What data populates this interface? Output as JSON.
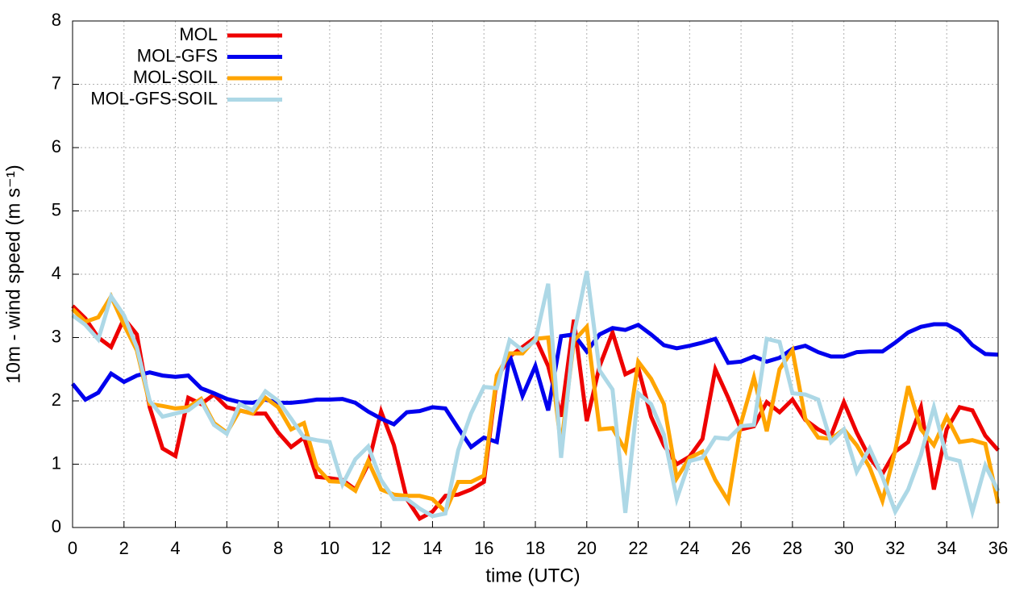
{
  "chart_data": {
    "type": "line",
    "x_label": "time (UTC)",
    "y_label": "10m - wind speed  (m s⁻¹)",
    "x": [
      0,
      0.5,
      1,
      1.5,
      2,
      2.5,
      3,
      3.5,
      4,
      4.5,
      5,
      5.5,
      6,
      6.5,
      7,
      7.5,
      8,
      8.5,
      9,
      9.5,
      10,
      10.5,
      11,
      11.5,
      12,
      12.5,
      13,
      13.5,
      14,
      14.5,
      15,
      15.5,
      16,
      16.5,
      17,
      17.5,
      18,
      18.5,
      19,
      19.5,
      20,
      20.5,
      21,
      21.5,
      22,
      22.5,
      23,
      23.5,
      24,
      24.5,
      25,
      25.5,
      26,
      26.5,
      27,
      27.5,
      28,
      28.5,
      29,
      29.5,
      30,
      30.5,
      31,
      31.5,
      32,
      32.5,
      33,
      33.5,
      34,
      34.5,
      35,
      35.5,
      36
    ],
    "series": [
      {
        "name": "MOL",
        "color": "#ee0000",
        "values": [
          3.5,
          3.3,
          3.0,
          2.85,
          3.3,
          3.05,
          1.9,
          1.25,
          1.13,
          2.05,
          1.95,
          2.1,
          1.9,
          1.85,
          1.8,
          1.8,
          1.5,
          1.27,
          1.42,
          0.8,
          0.78,
          0.75,
          0.6,
          1.0,
          1.83,
          1.3,
          0.45,
          0.14,
          0.25,
          0.5,
          0.52,
          0.6,
          0.72,
          2.35,
          2.7,
          2.85,
          3.0,
          2.55,
          1.75,
          3.28,
          1.68,
          2.55,
          3.08,
          2.42,
          2.52,
          1.75,
          1.3,
          1.0,
          1.12,
          1.4,
          2.5,
          2.05,
          1.55,
          1.6,
          1.98,
          1.82,
          2.02,
          1.7,
          1.55,
          1.45,
          1.98,
          1.5,
          1.1,
          0.85,
          1.2,
          1.35,
          1.9,
          0.6,
          1.55,
          1.9,
          1.85,
          1.45,
          1.22
        ]
      },
      {
        "name": "MOL-GFS",
        "color": "#0000ee",
        "values": [
          2.27,
          2.02,
          2.13,
          2.43,
          2.3,
          2.4,
          2.45,
          2.4,
          2.38,
          2.4,
          2.2,
          2.12,
          2.03,
          1.98,
          1.97,
          2.02,
          1.97,
          1.97,
          1.99,
          2.02,
          2.02,
          2.03,
          1.97,
          1.83,
          1.72,
          1.63,
          1.82,
          1.84,
          1.9,
          1.88,
          1.57,
          1.27,
          1.42,
          1.35,
          2.72,
          2.08,
          2.55,
          1.85,
          3.02,
          3.05,
          2.78,
          3.05,
          3.15,
          3.12,
          3.2,
          3.05,
          2.88,
          2.83,
          2.87,
          2.92,
          2.98,
          2.6,
          2.62,
          2.7,
          2.62,
          2.68,
          2.82,
          2.87,
          2.77,
          2.7,
          2.7,
          2.77,
          2.78,
          2.78,
          2.92,
          3.08,
          3.17,
          3.21,
          3.21,
          3.1,
          2.88,
          2.74,
          2.73
        ]
      },
      {
        "name": "MOL-SOIL",
        "color": "#ffa500",
        "values": [
          3.45,
          3.25,
          3.32,
          3.65,
          3.2,
          2.8,
          1.95,
          1.92,
          1.88,
          1.9,
          2.03,
          1.65,
          1.5,
          1.85,
          1.8,
          2.05,
          1.9,
          1.55,
          1.65,
          0.95,
          0.73,
          0.72,
          0.58,
          1.05,
          0.6,
          0.52,
          0.5,
          0.5,
          0.45,
          0.25,
          0.72,
          0.72,
          0.82,
          2.4,
          2.75,
          2.75,
          2.98,
          3.0,
          1.28,
          2.95,
          3.17,
          1.55,
          1.57,
          1.22,
          2.62,
          2.35,
          1.95,
          0.78,
          1.1,
          1.2,
          0.75,
          0.42,
          1.65,
          2.37,
          1.52,
          2.5,
          2.8,
          1.72,
          1.42,
          1.4,
          1.55,
          1.3,
          0.95,
          0.42,
          1.22,
          2.23,
          1.55,
          1.3,
          1.75,
          1.35,
          1.38,
          1.32,
          0.38
        ]
      },
      {
        "name": "MOL-GFS-SOIL",
        "color": "#add8e6",
        "values": [
          3.35,
          3.2,
          2.97,
          3.65,
          3.35,
          2.85,
          2.0,
          1.75,
          1.8,
          1.85,
          2.0,
          1.62,
          1.48,
          1.95,
          1.85,
          2.15,
          2.0,
          1.72,
          1.42,
          1.38,
          1.35,
          0.68,
          1.08,
          1.28,
          0.75,
          0.45,
          0.45,
          0.3,
          0.18,
          0.22,
          1.22,
          1.8,
          2.22,
          2.2,
          2.96,
          2.8,
          2.95,
          3.85,
          1.1,
          3.05,
          4.05,
          2.48,
          2.18,
          0.23,
          2.12,
          1.95,
          1.47,
          0.45,
          1.05,
          1.1,
          1.42,
          1.4,
          1.6,
          1.62,
          2.98,
          2.93,
          2.12,
          2.1,
          2.02,
          1.35,
          1.55,
          0.88,
          1.25,
          0.8,
          0.25,
          0.6,
          1.15,
          1.9,
          1.1,
          1.05,
          0.25,
          0.98,
          0.58
        ]
      }
    ],
    "xlim": [
      0,
      36
    ],
    "xticks": [
      0,
      2,
      4,
      6,
      8,
      10,
      12,
      14,
      16,
      18,
      20,
      22,
      24,
      26,
      28,
      30,
      32,
      34,
      36
    ],
    "ylim": [
      0,
      8
    ],
    "yticks": [
      0,
      1,
      2,
      3,
      4,
      5,
      6,
      7,
      8
    ],
    "grid": true,
    "legend": "top-left"
  }
}
